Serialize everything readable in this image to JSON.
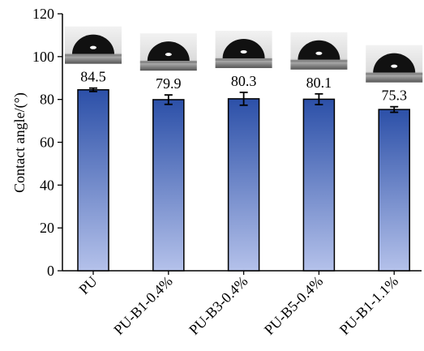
{
  "chart_data": {
    "type": "bar",
    "y_label": "Contact angle/(°)",
    "categories": [
      "PU",
      "PU-B1-0.4%",
      "PU-B3-0.4%",
      "PU-B5-0.4%",
      "PU-B1-1.1%"
    ],
    "values": [
      84.5,
      79.9,
      80.3,
      80.1,
      75.3
    ],
    "errors": [
      0.8,
      2.2,
      3.0,
      2.5,
      1.3
    ],
    "gradient": [
      "#2c50a8",
      "#b4c1ea"
    ],
    "ylim": [
      0,
      120
    ],
    "yticks": [
      0,
      20,
      40,
      60,
      80,
      100,
      120
    ]
  }
}
